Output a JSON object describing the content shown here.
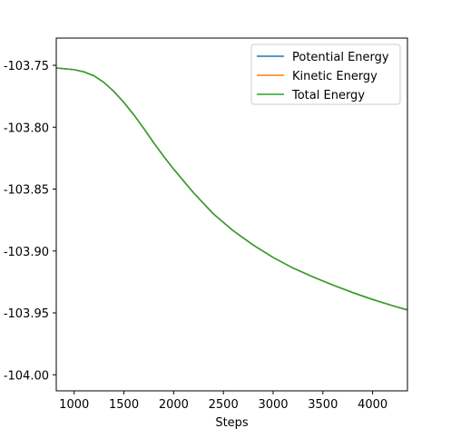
{
  "chart_data": {
    "type": "line",
    "title": "",
    "xlabel": "Steps",
    "ylabel": "",
    "xlim": [
      820,
      4350
    ],
    "ylim": [
      -104.013,
      -103.728
    ],
    "x_ticks": [
      1000,
      1500,
      2000,
      2500,
      3000,
      3500,
      4000
    ],
    "x_tick_labels": [
      "1000",
      "1500",
      "2000",
      "2500",
      "3000",
      "3500",
      "4000"
    ],
    "y_ticks": [
      -103.75,
      -103.8,
      -103.85,
      -103.9,
      -103.95,
      -104.0
    ],
    "y_tick_labels": [
      "-103.75",
      "-103.80",
      "-103.85",
      "-103.90",
      "-103.95",
      "-104.00"
    ],
    "grid": false,
    "legend_position": "top-right",
    "x": [
      820,
      1000,
      1100,
      1200,
      1300,
      1400,
      1500,
      1600,
      1700,
      1800,
      1900,
      2000,
      2200,
      2400,
      2600,
      2800,
      3000,
      3200,
      3400,
      3600,
      3800,
      4000,
      4200,
      4350
    ],
    "series": [
      {
        "name": "Potential Energy",
        "color": "#1f77b4",
        "values": [
          -103.7522,
          -103.7535,
          -103.7553,
          -103.7585,
          -103.7639,
          -103.7712,
          -103.78,
          -103.79,
          -103.801,
          -103.8127,
          -103.8236,
          -103.8339,
          -103.853,
          -103.8701,
          -103.8837,
          -103.8952,
          -103.9052,
          -103.9138,
          -103.9209,
          -103.9275,
          -103.9336,
          -103.9392,
          -103.9442,
          -103.9476
        ]
      },
      {
        "name": "Kinetic Energy",
        "color": "#ff7f0e",
        "values": [
          -103.7522,
          -103.7535,
          -103.7553,
          -103.7585,
          -103.7639,
          -103.7712,
          -103.78,
          -103.79,
          -103.801,
          -103.8127,
          -103.8236,
          -103.8339,
          -103.853,
          -103.8701,
          -103.8837,
          -103.8952,
          -103.9052,
          -103.9138,
          -103.9209,
          -103.9275,
          -103.9336,
          -103.9392,
          -103.9442,
          -103.9476
        ]
      },
      {
        "name": "Total Energy",
        "color": "#2ca02c",
        "values": [
          -103.7522,
          -103.7535,
          -103.7553,
          -103.7585,
          -103.7639,
          -103.7712,
          -103.78,
          -103.79,
          -103.801,
          -103.8127,
          -103.8236,
          -103.8339,
          -103.853,
          -103.8701,
          -103.8837,
          -103.8952,
          -103.9052,
          -103.9138,
          -103.9209,
          -103.9275,
          -103.9336,
          -103.9392,
          -103.9442,
          -103.9476
        ]
      }
    ]
  }
}
